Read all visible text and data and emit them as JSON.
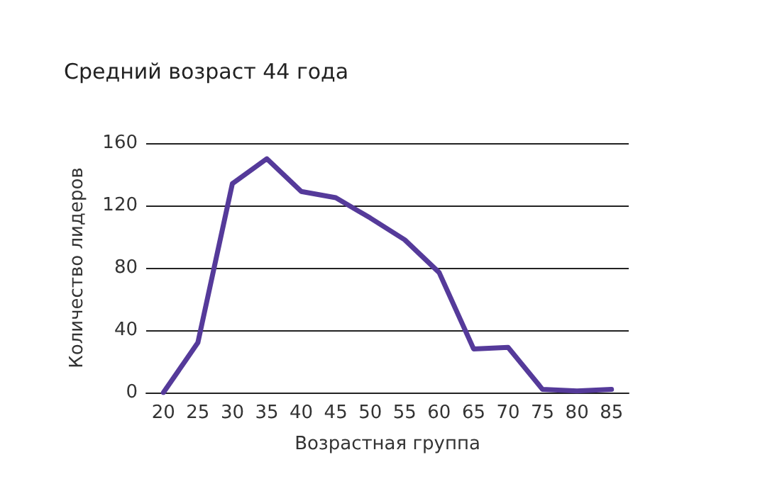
{
  "chart_data": {
    "type": "line",
    "title": "Средний возраст 44 года",
    "xlabel": "Возрастная группа",
    "ylabel": "Количество лидеров",
    "categories": [
      "20",
      "25",
      "30",
      "35",
      "40",
      "45",
      "50",
      "55",
      "60",
      "65",
      "70",
      "75",
      "80",
      "85"
    ],
    "series": [
      {
        "color": "#553a9a",
        "values": [
          0,
          32,
          134,
          150,
          129,
          125,
          112,
          98,
          77,
          28,
          29,
          2,
          1,
          2
        ]
      }
    ],
    "ylim": [
      0,
      160
    ],
    "yticks": [
      0,
      40,
      80,
      120,
      160
    ],
    "grid": "y",
    "marker": "none",
    "line_style": "solid"
  }
}
